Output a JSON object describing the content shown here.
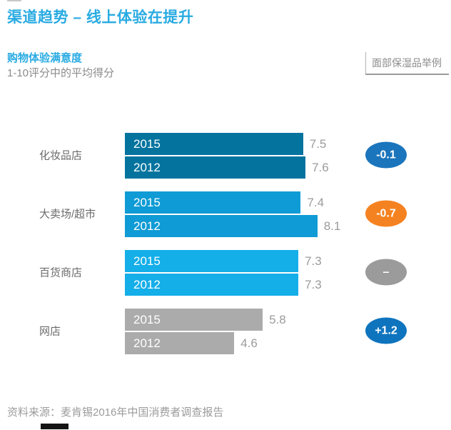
{
  "page": {
    "title": "渠道趋势 – 线上体验在提升",
    "source": "资料来源：麦肯锡2016年中国消费者调查报告"
  },
  "header": {
    "chart_title": "购物体验满意度",
    "chart_subtitle": "1-10评分中的平均得分",
    "example_tag": "面部保湿品举例"
  },
  "colors": {
    "title_blue": "#29ABE2",
    "value_text": "#9B9B9B",
    "category_text": "#6B6B6B",
    "badge_text": "#FFFFFF"
  },
  "chart_data": {
    "type": "bar",
    "orientation": "horizontal",
    "title": "购物体验满意度",
    "subtitle": "1-10评分中的平均得分",
    "annotation": "面部保湿品举例",
    "xlim": [
      0,
      10
    ],
    "grid": false,
    "legend_position": "none",
    "series_years": [
      "2015",
      "2012"
    ],
    "categories": [
      "化妆品店",
      "大卖场/超市",
      "百货商店",
      "网店"
    ],
    "groups": [
      {
        "category": "化妆品店",
        "bars": [
          {
            "year": "2015",
            "value": 7.5,
            "value_label": "7.5"
          },
          {
            "year": "2012",
            "value": 7.6,
            "value_label": "7.6"
          }
        ],
        "change": "-0.1",
        "bar_color": "#04749F",
        "badge_color": "#1B75BC"
      },
      {
        "category": "大卖场/超市",
        "bars": [
          {
            "year": "2015",
            "value": 7.4,
            "value_label": "7.4"
          },
          {
            "year": "2012",
            "value": 8.1,
            "value_label": "8.1"
          }
        ],
        "change": "-0.7",
        "bar_color": "#0F9BD5",
        "badge_color": "#F58220"
      },
      {
        "category": "百货商店",
        "bars": [
          {
            "year": "2015",
            "value": 7.3,
            "value_label": "7.3"
          },
          {
            "year": "2012",
            "value": 7.3,
            "value_label": "7.3"
          }
        ],
        "change": "–",
        "bar_color": "#14AEE9",
        "badge_color": "#9B9B9B"
      },
      {
        "category": "网店",
        "bars": [
          {
            "year": "2015",
            "value": 5.8,
            "value_label": "5.8"
          },
          {
            "year": "2012",
            "value": 4.6,
            "value_label": "4.6"
          }
        ],
        "change": "+1.2",
        "bar_color": "#ABABAB",
        "badge_color": "#0E74BE"
      }
    ]
  }
}
